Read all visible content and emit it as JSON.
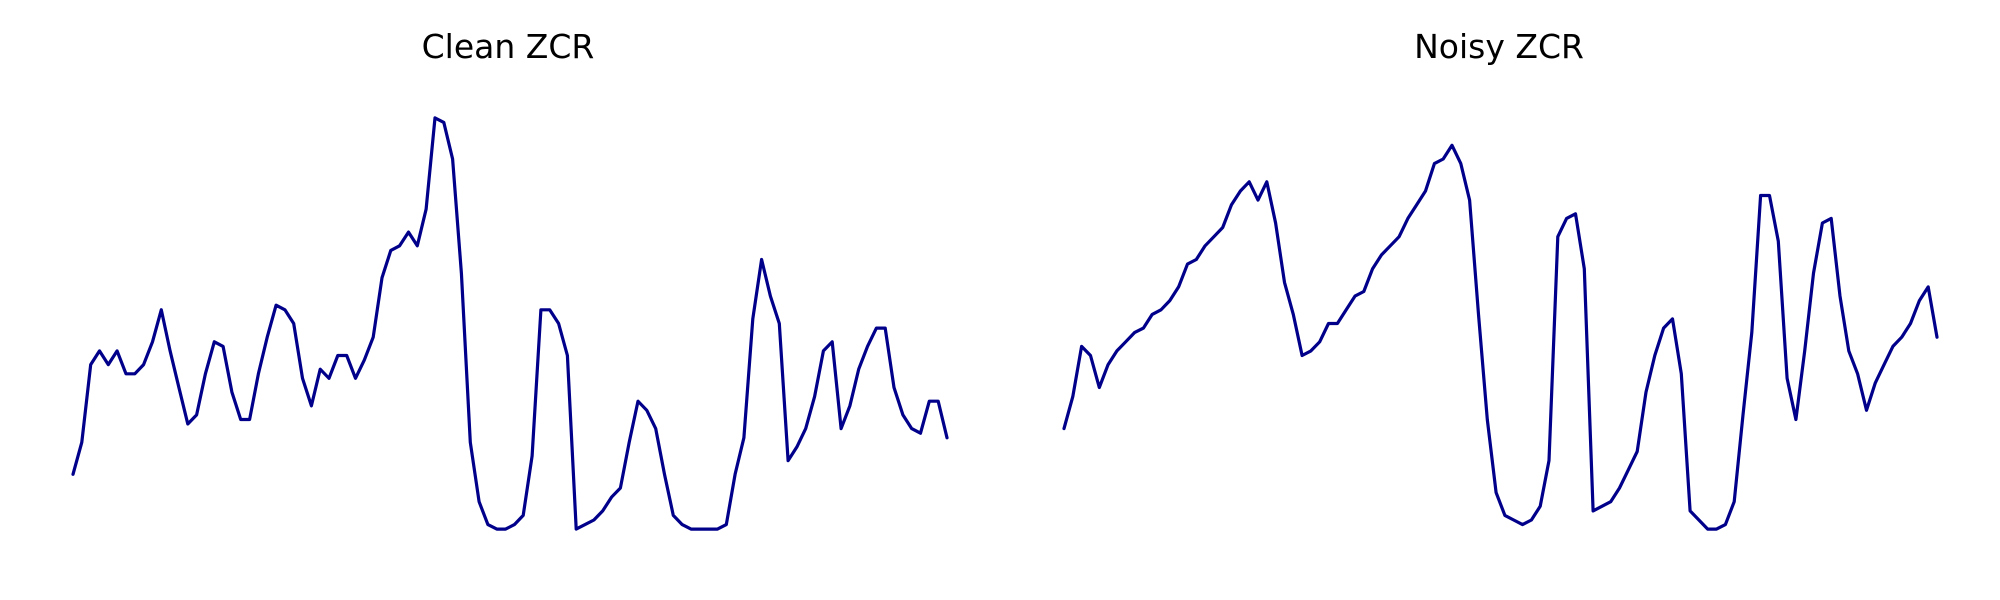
{
  "chart_data": [
    {
      "type": "line",
      "title": "Clean ZCR",
      "xlabel": "",
      "ylabel": "",
      "axes_visible": false,
      "grid": false,
      "color": "#00008b",
      "ylim": [
        0,
        1
      ],
      "x": [
        0,
        1,
        2,
        3,
        4,
        5,
        6,
        7,
        8,
        9,
        10,
        11,
        12,
        13,
        14,
        15,
        16,
        17,
        18,
        19,
        20,
        21,
        22,
        23,
        24,
        25,
        26,
        27,
        28,
        29,
        30,
        31,
        32,
        33,
        34,
        35,
        36,
        37,
        38,
        39,
        40,
        41,
        42,
        43,
        44,
        45,
        46,
        47,
        48,
        49,
        50,
        51,
        52,
        53,
        54,
        55,
        56,
        57,
        58,
        59,
        60,
        61,
        62,
        63,
        64,
        65,
        66,
        67,
        68,
        69,
        70,
        71,
        72,
        73,
        74,
        75,
        76,
        77,
        78,
        79,
        80,
        81,
        82,
        83,
        84,
        85,
        86,
        87,
        88,
        89,
        90,
        91,
        92,
        93,
        94,
        95,
        96,
        97,
        98,
        99
      ],
      "values": [
        0.17,
        0.24,
        0.41,
        0.44,
        0.41,
        0.44,
        0.39,
        0.39,
        0.41,
        0.46,
        0.53,
        0.44,
        0.36,
        0.28,
        0.3,
        0.39,
        0.46,
        0.45,
        0.35,
        0.29,
        0.29,
        0.39,
        0.47,
        0.54,
        0.53,
        0.5,
        0.38,
        0.32,
        0.4,
        0.38,
        0.43,
        0.43,
        0.38,
        0.42,
        0.47,
        0.6,
        0.66,
        0.67,
        0.7,
        0.67,
        0.75,
        0.95,
        0.94,
        0.86,
        0.61,
        0.24,
        0.11,
        0.06,
        0.05,
        0.05,
        0.06,
        0.08,
        0.21,
        0.53,
        0.53,
        0.5,
        0.43,
        0.05,
        0.06,
        0.07,
        0.09,
        0.12,
        0.14,
        0.24,
        0.33,
        0.31,
        0.27,
        0.17,
        0.08,
        0.06,
        0.05,
        0.05,
        0.05,
        0.05,
        0.06,
        0.17,
        0.25,
        0.51,
        0.64,
        0.56,
        0.5,
        0.2,
        0.23,
        0.27,
        0.34,
        0.44,
        0.46,
        0.27,
        0.32,
        0.4,
        0.45,
        0.49,
        0.49,
        0.36,
        0.3,
        0.27,
        0.26,
        0.33,
        0.33,
        0.25
      ]
    },
    {
      "type": "line",
      "title": "Noisy ZCR",
      "xlabel": "",
      "ylabel": "",
      "axes_visible": false,
      "grid": false,
      "color": "#00008b",
      "ylim": [
        0,
        1
      ],
      "x": [
        0,
        1,
        2,
        3,
        4,
        5,
        6,
        7,
        8,
        9,
        10,
        11,
        12,
        13,
        14,
        15,
        16,
        17,
        18,
        19,
        20,
        21,
        22,
        23,
        24,
        25,
        26,
        27,
        28,
        29,
        30,
        31,
        32,
        33,
        34,
        35,
        36,
        37,
        38,
        39,
        40,
        41,
        42,
        43,
        44,
        45,
        46,
        47,
        48,
        49,
        50,
        51,
        52,
        53,
        54,
        55,
        56,
        57,
        58,
        59,
        60,
        61,
        62,
        63,
        64,
        65,
        66,
        67,
        68,
        69,
        70,
        71,
        72,
        73,
        74,
        75,
        76,
        77,
        78,
        79,
        80,
        81,
        82,
        83,
        84,
        85,
        86,
        87,
        88,
        89,
        90,
        91,
        92,
        93,
        94,
        95,
        96,
        97,
        98,
        99
      ],
      "values": [
        0.27,
        0.34,
        0.45,
        0.43,
        0.36,
        0.41,
        0.44,
        0.46,
        0.48,
        0.49,
        0.52,
        0.53,
        0.55,
        0.58,
        0.63,
        0.64,
        0.67,
        0.69,
        0.71,
        0.76,
        0.79,
        0.81,
        0.77,
        0.81,
        0.72,
        0.59,
        0.52,
        0.43,
        0.44,
        0.46,
        0.5,
        0.5,
        0.53,
        0.56,
        0.57,
        0.62,
        0.65,
        0.67,
        0.69,
        0.73,
        0.76,
        0.79,
        0.85,
        0.86,
        0.89,
        0.85,
        0.77,
        0.52,
        0.29,
        0.13,
        0.08,
        0.07,
        0.06,
        0.07,
        0.1,
        0.2,
        0.69,
        0.73,
        0.74,
        0.62,
        0.09,
        0.1,
        0.11,
        0.14,
        0.18,
        0.22,
        0.35,
        0.43,
        0.49,
        0.51,
        0.39,
        0.09,
        0.07,
        0.05,
        0.05,
        0.06,
        0.11,
        0.3,
        0.48,
        0.78,
        0.78,
        0.68,
        0.38,
        0.29,
        0.44,
        0.61,
        0.72,
        0.73,
        0.56,
        0.44,
        0.39,
        0.31,
        0.37,
        0.41,
        0.45,
        0.47,
        0.5,
        0.55,
        0.58,
        0.47
      ]
    }
  ]
}
